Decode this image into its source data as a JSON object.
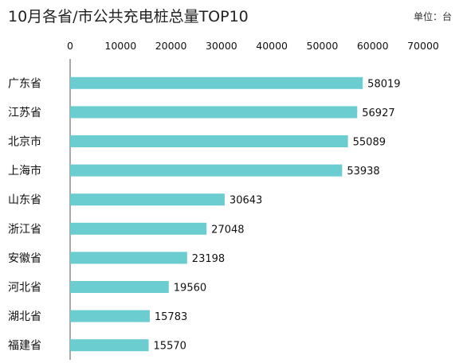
{
  "chart_data": {
    "type": "bar",
    "orientation": "horizontal",
    "title": "10月各省/市公共充电桩总量TOP10",
    "unit_label": "单位：台",
    "categories": [
      "广东省",
      "江苏省",
      "北京市",
      "上海市",
      "山东省",
      "浙江省",
      "安徽省",
      "河北省",
      "湖北省",
      "福建省"
    ],
    "values": [
      58019,
      56927,
      55089,
      53938,
      30643,
      27048,
      23198,
      19560,
      15783,
      15570
    ],
    "xlim": [
      0,
      70000
    ],
    "ticks": [
      "0",
      "10000",
      "20000",
      "30000",
      "40000",
      "50000",
      "60000",
      "70000"
    ],
    "x_axis_position": "top",
    "grid": false,
    "legend": "none",
    "bar_color": "#6ccdd0"
  }
}
